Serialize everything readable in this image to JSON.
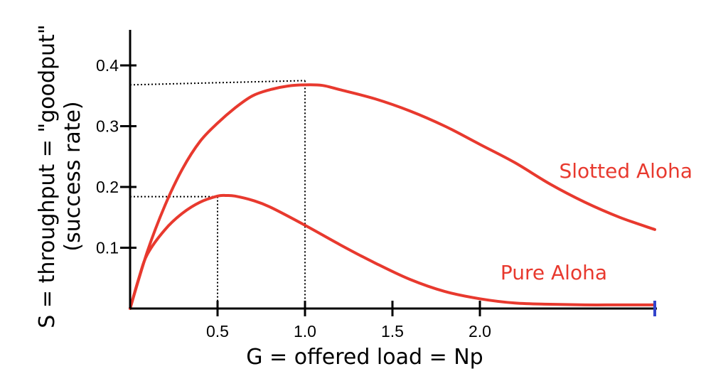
{
  "chart_data": {
    "type": "line",
    "title": "",
    "xlabel": "G = offered load = Np",
    "ylabel": [
      "S = throughput = \"goodput\"",
      "(success rate)"
    ],
    "xlim": [
      0,
      3.0
    ],
    "ylim": [
      0,
      0.47
    ],
    "x_ticks": [
      {
        "value": 0.5,
        "label": "0.5"
      },
      {
        "value": 1.0,
        "label": "1.0"
      },
      {
        "value": 1.5,
        "label": "1.5"
      },
      {
        "value": 2.0,
        "label": "2.0"
      },
      {
        "value": 3.0,
        "label": ""
      }
    ],
    "y_ticks": [
      {
        "value": 0.1,
        "label": "0.1"
      },
      {
        "value": 0.2,
        "label": "0.2"
      },
      {
        "value": 0.3,
        "label": "0.3"
      },
      {
        "value": 0.4,
        "label": "0.4"
      }
    ],
    "grid": false,
    "series": [
      {
        "name": "Slotted Aloha",
        "color": "#e8392e",
        "x": [
          0,
          0.1,
          0.2,
          0.3,
          0.4,
          0.5,
          0.6,
          0.7,
          0.8,
          0.9,
          1.0,
          1.1,
          1.2,
          1.4,
          1.6,
          1.8,
          2.0,
          2.2,
          2.4,
          2.6,
          2.8,
          3.0
        ],
        "y": [
          0,
          0.095,
          0.17,
          0.23,
          0.275,
          0.305,
          0.33,
          0.35,
          0.36,
          0.366,
          0.368,
          0.367,
          0.36,
          0.345,
          0.325,
          0.3,
          0.27,
          0.24,
          0.205,
          0.175,
          0.15,
          0.13
        ]
      },
      {
        "name": "Pure Aloha",
        "color": "#e8392e",
        "x": [
          0,
          0.05,
          0.1,
          0.2,
          0.3,
          0.4,
          0.5,
          0.55,
          0.6,
          0.7,
          0.8,
          1.0,
          1.2,
          1.4,
          1.6,
          1.8,
          2.0,
          2.2,
          2.4,
          2.6,
          2.8,
          3.0
        ],
        "y": [
          0,
          0.05,
          0.09,
          0.13,
          0.157,
          0.175,
          0.185,
          0.186,
          0.185,
          0.178,
          0.167,
          0.137,
          0.105,
          0.075,
          0.048,
          0.028,
          0.016,
          0.009,
          0.007,
          0.006,
          0.006,
          0.006
        ]
      }
    ],
    "reference_lines": [
      {
        "x": 0.5,
        "y": 0.184
      },
      {
        "x": 1.0,
        "y": 0.368
      }
    ],
    "axis_color": "#000000",
    "end_tick_color": "#3344cc"
  }
}
